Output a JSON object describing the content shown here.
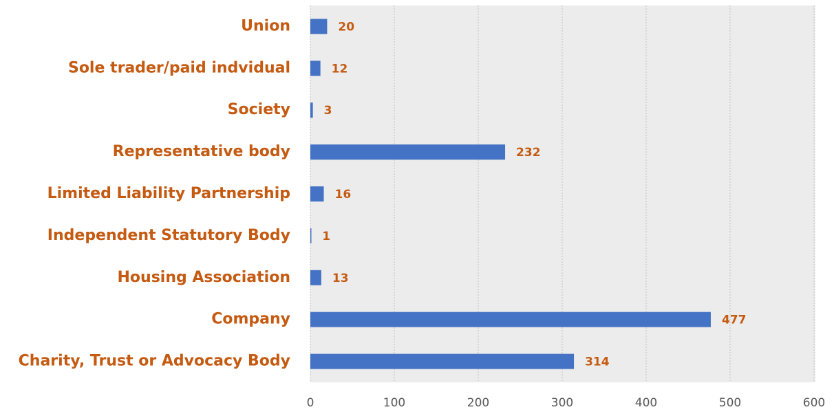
{
  "chart_data": {
    "type": "bar",
    "orientation": "horizontal",
    "categories": [
      "Union",
      "Sole trader/paid indvidual",
      "Society",
      "Representative body",
      "Limited Liability Partnership",
      "Independent Statutory Body",
      "Housing Association",
      "Company",
      "Charity, Trust or Advocacy Body"
    ],
    "values": [
      20,
      12,
      3,
      232,
      16,
      1,
      13,
      477,
      314
    ],
    "color": "#4472c4",
    "xlim": [
      0,
      600
    ],
    "xticks": [
      0,
      100,
      200,
      300,
      400,
      500,
      600
    ],
    "grid": true
  }
}
